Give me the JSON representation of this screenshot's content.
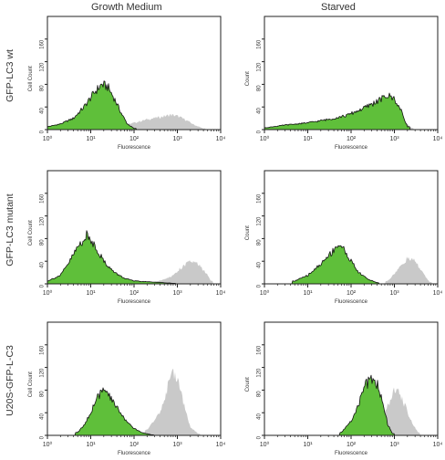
{
  "column_titles": [
    "Growth Medium",
    "Starved"
  ],
  "row_titles": [
    "GFP-LC3 wt",
    "GFP-LC3 mutant",
    "U20S-GFP-L-C3"
  ],
  "colors": {
    "green": "#5fbf3a",
    "gray": "#c9c9c9",
    "outline": "#111111"
  },
  "chart_data": [
    {
      "type": "area",
      "row": 0,
      "col": 0,
      "xscale": "log",
      "xlim": [
        1,
        10000
      ],
      "ylim": [
        0,
        200
      ],
      "xlabel": "Fluorescence",
      "ylabel": "Cell Count",
      "xticks": [
        "10⁰",
        "10¹",
        "10²",
        "10³",
        "10⁴"
      ],
      "yticks": [
        "0",
        "40",
        "80",
        "120",
        "160"
      ],
      "series": [
        {
          "color": "gray",
          "x": [
            30,
            60,
            100,
            200,
            400,
            700,
            1000,
            1500,
            2500,
            4000
          ],
          "y": [
            3,
            8,
            12,
            18,
            22,
            26,
            24,
            18,
            8,
            2
          ]
        },
        {
          "color": "green",
          "x": [
            1,
            2,
            4,
            7,
            12,
            18,
            25,
            35,
            50,
            70,
            100
          ],
          "y": [
            5,
            10,
            20,
            40,
            65,
            80,
            75,
            55,
            30,
            10,
            2
          ]
        }
      ]
    },
    {
      "type": "area",
      "row": 0,
      "col": 1,
      "xscale": "log",
      "xlim": [
        1,
        10000
      ],
      "ylim": [
        0,
        200
      ],
      "xlabel": "Fluorescence",
      "ylabel": "Count",
      "xticks": [
        "10⁰",
        "10¹",
        "10²",
        "10³",
        "10⁴"
      ],
      "yticks": [
        "0",
        "40",
        "80",
        "120",
        "160"
      ],
      "series": [
        {
          "color": "gray",
          "x": [
            100,
            300,
            600,
            1000,
            1500,
            2500
          ],
          "y": [
            5,
            20,
            32,
            30,
            18,
            3
          ]
        },
        {
          "color": "green",
          "x": [
            1,
            3,
            10,
            30,
            80,
            200,
            400,
            700,
            1000,
            1500,
            2000
          ],
          "y": [
            3,
            8,
            12,
            18,
            25,
            38,
            50,
            60,
            55,
            30,
            5
          ]
        }
      ]
    },
    {
      "type": "area",
      "row": 1,
      "col": 0,
      "xscale": "log",
      "xlim": [
        1,
        10000
      ],
      "ylim": [
        0,
        200
      ],
      "xlabel": "Fluorescence",
      "ylabel": "Cell Count",
      "xticks": [
        "10⁰",
        "10¹",
        "10²",
        "10³",
        "10⁴"
      ],
      "yticks": [
        "0",
        "40",
        "80",
        "120",
        "160"
      ],
      "series": [
        {
          "color": "gray",
          "x": [
            300,
            700,
            1200,
            2000,
            3000,
            4500,
            6000
          ],
          "y": [
            3,
            12,
            28,
            40,
            35,
            20,
            5
          ]
        },
        {
          "color": "green",
          "x": [
            1,
            2,
            3,
            5,
            8,
            12,
            20,
            35,
            60,
            100,
            300,
            800
          ],
          "y": [
            5,
            15,
            35,
            65,
            85,
            70,
            40,
            20,
            10,
            5,
            3,
            1
          ]
        }
      ]
    },
    {
      "type": "area",
      "row": 1,
      "col": 1,
      "xscale": "log",
      "xlim": [
        1,
        10000
      ],
      "ylim": [
        0,
        200
      ],
      "xlabel": "Fluorescence",
      "ylabel": "Count",
      "xticks": [
        "10⁰",
        "10¹",
        "10²",
        "10³",
        "10⁴"
      ],
      "yticks": [
        "0",
        "40",
        "80",
        "120",
        "160"
      ],
      "series": [
        {
          "color": "gray",
          "x": [
            700,
            1200,
            2000,
            3000,
            4500,
            6500
          ],
          "y": [
            5,
            25,
            45,
            40,
            20,
            3
          ]
        },
        {
          "color": "green",
          "x": [
            5,
            10,
            20,
            35,
            50,
            70,
            100,
            150,
            250,
            400
          ],
          "y": [
            5,
            15,
            35,
            55,
            70,
            60,
            40,
            20,
            8,
            2
          ]
        }
      ]
    },
    {
      "type": "area",
      "row": 2,
      "col": 0,
      "xscale": "log",
      "xlim": [
        1,
        10000
      ],
      "ylim": [
        0,
        200
      ],
      "xlabel": "Fluorescence",
      "ylabel": "Cell Count",
      "xticks": [
        "10⁰",
        "10¹",
        "10²",
        "10³",
        "10⁴"
      ],
      "yticks": [
        "0",
        "40",
        "80",
        "120",
        "160"
      ],
      "series": [
        {
          "color": "gray",
          "x": [
            200,
            400,
            600,
            800,
            1000,
            1200,
            1500,
            2000,
            3000
          ],
          "y": [
            10,
            40,
            85,
            110,
            105,
            80,
            45,
            15,
            3
          ]
        },
        {
          "color": "green",
          "x": [
            5,
            8,
            12,
            18,
            25,
            40,
            60,
            100,
            150,
            250
          ],
          "y": [
            5,
            25,
            55,
            80,
            72,
            50,
            30,
            12,
            5,
            1
          ]
        }
      ]
    },
    {
      "type": "area",
      "row": 2,
      "col": 1,
      "xscale": "log",
      "xlim": [
        1,
        10000
      ],
      "ylim": [
        0,
        200
      ],
      "xlabel": "Fluorescence",
      "ylabel": "Count",
      "xticks": [
        "10⁰",
        "10¹",
        "10²",
        "10³",
        "10⁴"
      ],
      "yticks": [
        "0",
        "40",
        "80",
        "120",
        "160"
      ],
      "series": [
        {
          "color": "gray",
          "x": [
            300,
            500,
            800,
            1000,
            1300,
            1700,
            2500,
            3500
          ],
          "y": [
            10,
            30,
            60,
            80,
            75,
            55,
            25,
            5
          ]
        },
        {
          "color": "green",
          "x": [
            60,
            100,
            150,
            200,
            300,
            400,
            550,
            700,
            900
          ],
          "y": [
            5,
            25,
            55,
            85,
            100,
            90,
            55,
            20,
            3
          ]
        }
      ]
    }
  ]
}
